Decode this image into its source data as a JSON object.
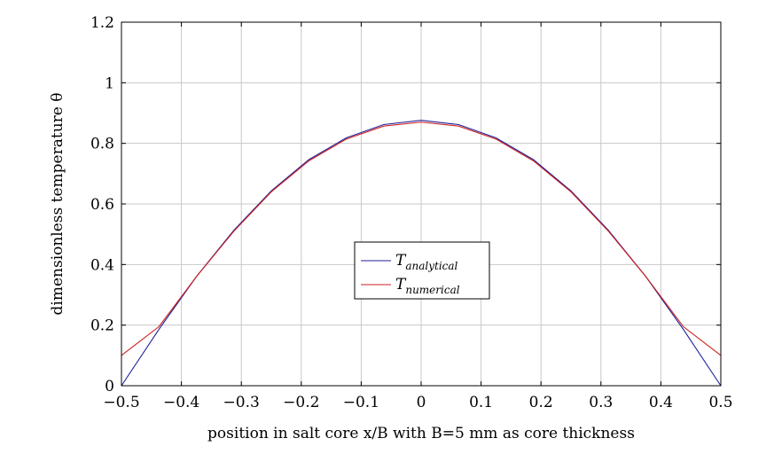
{
  "chart_data": {
    "type": "line",
    "xlabel": "position in salt core x/B with B=5 mm as core thickness",
    "ylabel": "dimensionless temperature θ",
    "xlim": [
      -0.5,
      0.5
    ],
    "ylim": [
      0,
      1.2
    ],
    "grid": true,
    "legend_position": "center",
    "x_ticks": [
      -0.5,
      -0.4,
      -0.3,
      -0.2,
      -0.1,
      0,
      0.1,
      0.2,
      0.3,
      0.4,
      0.5
    ],
    "x_tick_labels": [
      "−0.5",
      "−0.4",
      "−0.3",
      "−0.2",
      "−0.1",
      "0",
      "0.1",
      "0.2",
      "0.3",
      "0.4",
      "0.5"
    ],
    "y_ticks": [
      0,
      0.2,
      0.4,
      0.6,
      0.8,
      1,
      1.2
    ],
    "y_tick_labels": [
      "0",
      "0.2",
      "0.4",
      "0.6",
      "0.8",
      "1",
      "1.2"
    ],
    "series": [
      {
        "name": "T",
        "subscript": "analytical",
        "color": "#1f1f99",
        "x": [
          -0.5,
          -0.4375,
          -0.375,
          -0.3125,
          -0.25,
          -0.1875,
          -0.125,
          -0.0625,
          0,
          0.0625,
          0.125,
          0.1875,
          0.25,
          0.3125,
          0.375,
          0.4375,
          0.5
        ],
        "y": [
          0.0,
          0.186,
          0.36,
          0.513,
          0.643,
          0.746,
          0.818,
          0.862,
          0.876,
          0.862,
          0.818,
          0.746,
          0.643,
          0.513,
          0.36,
          0.186,
          0.0
        ]
      },
      {
        "name": "T",
        "subscript": "numerical",
        "color": "#cc2222",
        "x": [
          -0.5,
          -0.4375,
          -0.375,
          -0.3125,
          -0.25,
          -0.1875,
          -0.125,
          -0.0625,
          0,
          0.0625,
          0.125,
          0.1875,
          0.25,
          0.3125,
          0.375,
          0.4375,
          0.5
        ],
        "y": [
          0.1,
          0.195,
          0.36,
          0.51,
          0.64,
          0.742,
          0.814,
          0.857,
          0.87,
          0.857,
          0.814,
          0.742,
          0.64,
          0.51,
          0.36,
          0.195,
          0.1
        ]
      }
    ]
  }
}
